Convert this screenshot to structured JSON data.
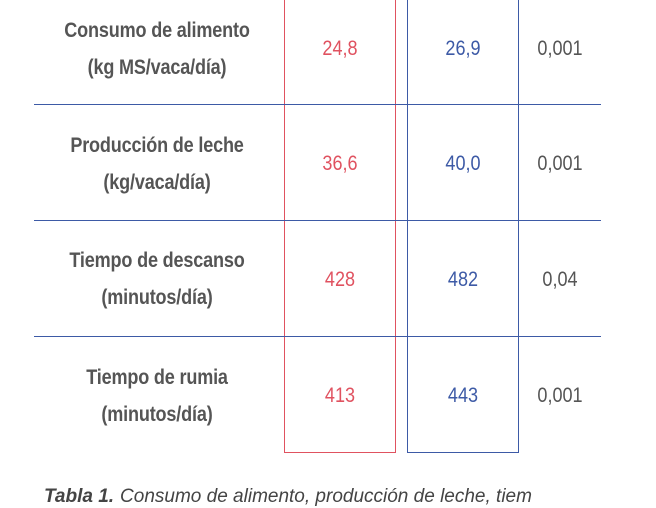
{
  "rows": [
    {
      "label_line1": "Consumo de alimento",
      "label_line2": "(kg MS/vaca/día)",
      "val_a": "24,8",
      "val_b": "26,9",
      "p": "0,001"
    },
    {
      "label_line1": "Producción de leche",
      "label_line2": "(kg/vaca/día)",
      "val_a": "36,6",
      "val_b": "40,0",
      "p": "0,001"
    },
    {
      "label_line1": "Tiempo de descanso",
      "label_line2": "(minutos/día)",
      "val_a": "428",
      "val_b": "482",
      "p": "0,04"
    },
    {
      "label_line1": "Tiempo de rumia",
      "label_line2": "(minutos/día)",
      "val_a": "413",
      "val_b": "443",
      "p": "0,001"
    }
  ],
  "caption": {
    "label": "Tabla 1.",
    "text": "Consumo de alimento, producción de leche, tiem"
  },
  "colors": {
    "red": "#e05260",
    "blue": "#3d5aa6",
    "text": "#555555"
  }
}
